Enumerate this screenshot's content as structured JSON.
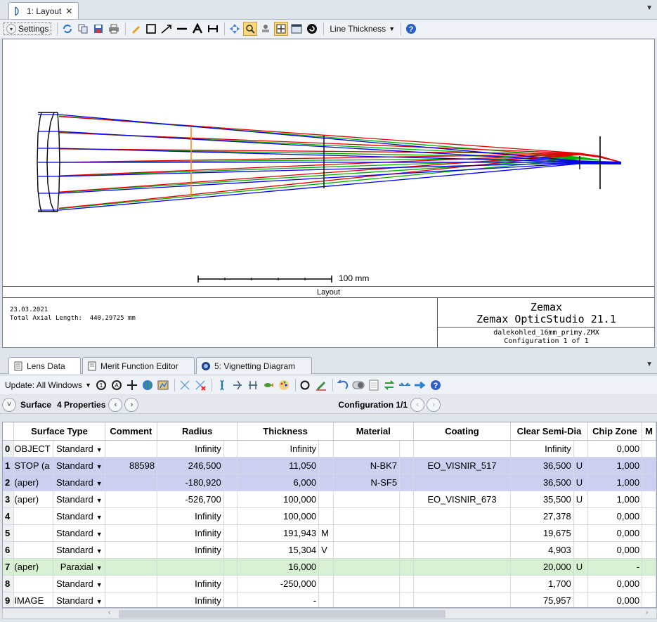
{
  "window": {
    "tab_label": "1: Layout",
    "settings_label": "Settings",
    "line_thickness_label": "Line Thickness"
  },
  "plot": {
    "scale_label": "100 mm",
    "plot_title": "Layout",
    "date": "23.03.2021",
    "axial_length": "Total Axial Length:  440,29725 mm",
    "company": "Zemax",
    "product": "Zemax OpticStudio 21.1",
    "filename": "dalekohled_16mm_primy.ZMX",
    "configuration": "Configuration 1 of 1"
  },
  "lower": {
    "tabs": [
      "Lens Data",
      "Merit Function Editor",
      "5: Vignetting Diagram"
    ],
    "update_label": "Update: All Windows",
    "surface_label": "Surface",
    "properties_label": "4 Properties",
    "config_label": "Configuration 1/1"
  },
  "table": {
    "headers": [
      "Surface Type",
      "Comment",
      "Radius",
      "Thickness",
      "Material",
      "Coating",
      "Clear Semi-Dia",
      "Chip Zone",
      "M"
    ],
    "rows": [
      {
        "n": "0",
        "name": "OBJECT",
        "type": "Standard",
        "comment": "",
        "radius": "Infinity",
        "rflag": "",
        "thick": "Infinity",
        "tflag": "",
        "material": "",
        "coating": "",
        "semi": "Infinity",
        "sflag": "",
        "chip": "0,000"
      },
      {
        "n": "1",
        "name": "STOP (a",
        "type": "Standard",
        "comment": "88598",
        "radius": "246,500",
        "rflag": "",
        "thick": "11,050",
        "tflag": "",
        "material": "N-BK7",
        "coating": "EO_VISNIR_517",
        "semi": "36,500",
        "sflag": "U",
        "chip": "1,000"
      },
      {
        "n": "2",
        "name": "(aper)",
        "type": "Standard",
        "comment": "",
        "radius": "-180,920",
        "rflag": "",
        "thick": "6,000",
        "tflag": "",
        "material": "N-SF5",
        "coating": "",
        "semi": "36,500",
        "sflag": "U",
        "chip": "1,000"
      },
      {
        "n": "3",
        "name": "(aper)",
        "type": "Standard",
        "comment": "",
        "radius": "-526,700",
        "rflag": "",
        "thick": "100,000",
        "tflag": "",
        "material": "",
        "coating": "EO_VISNIR_673",
        "semi": "35,500",
        "sflag": "U",
        "chip": "1,000"
      },
      {
        "n": "4",
        "name": "",
        "type": "Standard",
        "comment": "",
        "radius": "Infinity",
        "rflag": "",
        "thick": "100,000",
        "tflag": "",
        "material": "",
        "coating": "",
        "semi": "27,378",
        "sflag": "",
        "chip": "0,000"
      },
      {
        "n": "5",
        "name": "",
        "type": "Standard",
        "comment": "",
        "radius": "Infinity",
        "rflag": "",
        "thick": "191,943",
        "tflag": "M",
        "material": "",
        "coating": "",
        "semi": "19,675",
        "sflag": "",
        "chip": "0,000"
      },
      {
        "n": "6",
        "name": "",
        "type": "Standard",
        "comment": "",
        "radius": "Infinity",
        "rflag": "",
        "thick": "15,304",
        "tflag": "V",
        "material": "",
        "coating": "",
        "semi": "4,903",
        "sflag": "",
        "chip": "0,000"
      },
      {
        "n": "7",
        "name": "(aper)",
        "type": "Paraxial",
        "comment": "",
        "radius": "",
        "rflag": "",
        "thick": "16,000",
        "tflag": "",
        "material": "",
        "coating": "",
        "semi": "20,000",
        "sflag": "U",
        "chip": "-"
      },
      {
        "n": "8",
        "name": "",
        "type": "Standard",
        "comment": "",
        "radius": "Infinity",
        "rflag": "",
        "thick": "-250,000",
        "tflag": "",
        "material": "",
        "coating": "",
        "semi": "1,700",
        "sflag": "",
        "chip": "0,000"
      },
      {
        "n": "9",
        "name": "IMAGE",
        "type": "Standard",
        "comment": "",
        "radius": "Infinity",
        "rflag": "",
        "thick": "-",
        "tflag": "",
        "material": "",
        "coating": "",
        "semi": "75,957",
        "sflag": "",
        "chip": "0,000"
      }
    ]
  },
  "colors": {
    "selected_row": "#cccff0",
    "paraxial_row": "#d7f0d2",
    "ray_blue": "#0000ee",
    "ray_green": "#00b000",
    "ray_red": "#e00000",
    "stop_orange": "#ff8c00"
  }
}
